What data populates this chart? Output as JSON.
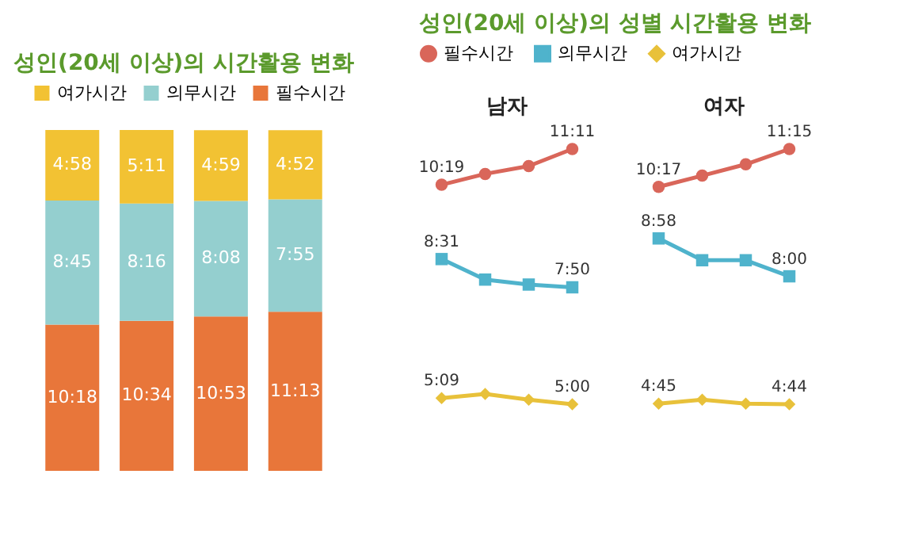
{
  "chart_data": [
    {
      "type": "bar",
      "title": "성인(20세 이상)의 시간활용 변화",
      "categories": [
        null,
        null,
        null,
        null
      ],
      "stacked": true,
      "legend": "top",
      "series": [
        {
          "name": "필수시간",
          "color": "#e8763a",
          "values": [
            10.3,
            10.567,
            10.883,
            11.217
          ],
          "value_labels": [
            "10:18",
            "10:34",
            "10:53",
            "11:13"
          ]
        },
        {
          "name": "의무시간",
          "color": "#94cfcf",
          "values": [
            8.75,
            8.267,
            8.133,
            7.917
          ],
          "value_labels": [
            "8:45",
            "8:16",
            "8:08",
            "7:55"
          ]
        },
        {
          "name": "여가시간",
          "color": "#f2c233",
          "values": [
            4.967,
            5.183,
            4.983,
            4.867
          ],
          "value_labels": [
            "4:58",
            "5:11",
            "4:59",
            "4:52"
          ]
        }
      ]
    },
    {
      "type": "line",
      "title": "성인(20세 이상)의 성별 시간활용 변화",
      "subtitle": "남자",
      "categories": [
        null,
        null,
        null,
        null
      ],
      "legend": "top",
      "series": [
        {
          "name": "필수시간",
          "color": "#d9665a",
          "marker": "circle",
          "values": [
            10.317,
            10.58,
            10.77,
            11.183
          ],
          "value_labels": [
            "10:19",
            null,
            null,
            "11:11"
          ]
        },
        {
          "name": "의무시간",
          "color": "#4fb3cc",
          "marker": "square",
          "values": [
            8.517,
            8.02,
            7.9,
            7.833
          ],
          "value_labels": [
            "8:31",
            null,
            null,
            "7:50"
          ]
        },
        {
          "name": "여가시간",
          "color": "#e8c13a",
          "marker": "diamond",
          "values": [
            5.15,
            5.25,
            5.11,
            5.0
          ],
          "value_labels": [
            "5:09",
            null,
            null,
            "5:00"
          ]
        }
      ]
    },
    {
      "type": "line",
      "subtitle": "여자",
      "categories": [
        null,
        null,
        null,
        null
      ],
      "series": [
        {
          "color": "#d9665a",
          "marker": "circle",
          "values": [
            10.283,
            10.57,
            10.86,
            11.25
          ],
          "value_labels": [
            "10:17",
            null,
            null,
            "11:15"
          ]
        },
        {
          "color": "#4fb3cc",
          "marker": "square",
          "values": [
            8.967,
            8.41,
            8.41,
            8.0
          ],
          "value_labels": [
            "8:58",
            null,
            null,
            "8:00"
          ]
        },
        {
          "color": "#e8c13a",
          "marker": "diamond",
          "values": [
            4.75,
            4.85,
            4.75,
            4.733
          ],
          "value_labels": [
            "4:45",
            null,
            null,
            "4:44"
          ]
        }
      ]
    }
  ]
}
